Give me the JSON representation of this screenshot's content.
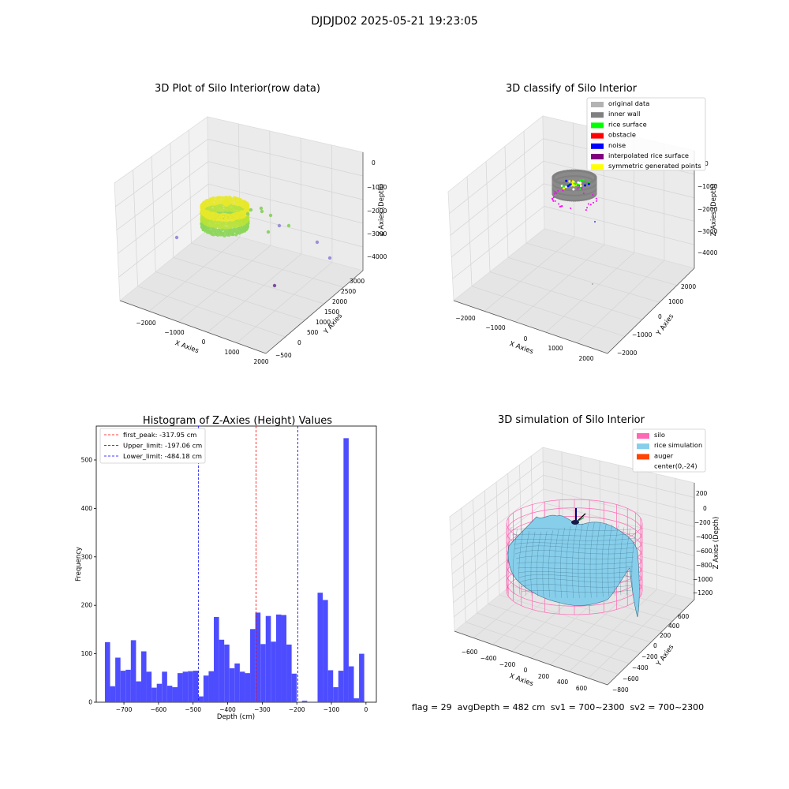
{
  "suptitle": "DJDJD02 2025-05-21 19:23:05",
  "footer": "flag = 29  avgDepth = 482 cm  sv1 = 700~2300  sv2 = 700~2300",
  "chart_data": [
    {
      "type": "scatter",
      "title": "3D Plot of Silo Interior(row data)",
      "xlabel": "X Axies",
      "ylabel": "Y Axies",
      "zlabel": "Z Axies (Depth)",
      "xticks": [
        "−2000",
        "−1000",
        "0",
        "1000",
        "2000"
      ],
      "yticks": [
        "−500",
        "0",
        "500",
        "1000",
        "1500",
        "2000",
        "2500",
        "3000"
      ],
      "zticks": [
        "0",
        "−1000",
        "−2000",
        "−3000",
        "−4000"
      ],
      "colors": {
        "ring_top": "#e8e82a",
        "ring_mid": "#b8e23a",
        "ring_low": "#8cd65a",
        "outlier_a": "#8fd16a",
        "outlier_b": "#9c8fd8",
        "outlier_c": "#7a4f9e"
      }
    },
    {
      "type": "scatter",
      "title": "3D classify of Silo Interior",
      "xlabel": "X Axies",
      "ylabel": "Y Axies",
      "zlabel": "Z Axies (Depth)",
      "xticks": [
        "−2000",
        "−1000",
        "0",
        "1000",
        "2000"
      ],
      "yticks": [
        "−2000",
        "−1000",
        "0",
        "1000",
        "2000"
      ],
      "zticks": [
        "0",
        "−1000",
        "−2000",
        "−3000",
        "−4000"
      ],
      "legend_position": "top-right",
      "legend": [
        {
          "label": "original data",
          "color": "#b3b3b3"
        },
        {
          "label": "inner wall",
          "color": "#808080"
        },
        {
          "label": "rice surface",
          "color": "#00ff00"
        },
        {
          "label": "obstacle",
          "color": "#ff0000"
        },
        {
          "label": "noise",
          "color": "#0000ff"
        },
        {
          "label": "interpolated rice surface",
          "color": "#800080"
        },
        {
          "label": "symmetric generated points",
          "color": "#ffff00"
        }
      ]
    },
    {
      "type": "bar",
      "title": "Histogram of Z-Axies (Height) Values",
      "xlabel": "Depth (cm)",
      "ylabel": "Frequency",
      "xlim": [
        -780,
        30
      ],
      "ylim": [
        0,
        570
      ],
      "xticks": [
        -700,
        -600,
        -500,
        -400,
        -300,
        -200,
        -100,
        0
      ],
      "xtick_labels": [
        "−700",
        "−600",
        "−500",
        "−400",
        "−300",
        "−200",
        "−100",
        "0"
      ],
      "yticks": [
        0,
        100,
        200,
        300,
        400,
        500
      ],
      "bar_color": "#4d4dff",
      "bin_edges": [
        -755,
        -740,
        -725,
        -710,
        -695,
        -680,
        -665,
        -650,
        -635,
        -620,
        -605,
        -590,
        -575,
        -560,
        -545,
        -530,
        -515,
        -500,
        -485,
        -470,
        -455,
        -440,
        -425,
        -410,
        -395,
        -380,
        -365,
        -350,
        -335,
        -320,
        -305,
        -290,
        -275,
        -260,
        -245,
        -230,
        -215,
        -200,
        -185,
        -170,
        -155,
        -140,
        -125,
        -110,
        -95,
        -80,
        -65,
        -50,
        -35,
        -20,
        -5
      ],
      "values": [
        124,
        33,
        92,
        65,
        67,
        128,
        43,
        105,
        63,
        30,
        38,
        63,
        34,
        31,
        60,
        63,
        64,
        65,
        12,
        55,
        64,
        176,
        129,
        119,
        70,
        80,
        63,
        60,
        151,
        185,
        120,
        178,
        125,
        181,
        180,
        119,
        59,
        0,
        3,
        1,
        1,
        226,
        211,
        66,
        31,
        65,
        545,
        74,
        8,
        100
      ],
      "lines": [
        {
          "label": "first_peak: -317.95 cm",
          "x": -317.95,
          "color": "#ff0000"
        },
        {
          "label": "Upper_limit: -197.06 cm",
          "x": -197.06,
          "color": "#0000ff"
        },
        {
          "label": "Lower_limit: -484.18 cm",
          "x": -484.18,
          "color": "#0000ff"
        }
      ],
      "legend_position": "top-left"
    },
    {
      "type": "surface",
      "title": "3D simulation of Silo Interior",
      "xlabel": "X Axies",
      "ylabel": "Y Axies",
      "zlabel": "Z Axies (Depth)",
      "xticks": [
        "−600",
        "−400",
        "−200",
        "0",
        "200",
        "400",
        "600"
      ],
      "yticks": [
        "−800",
        "−600",
        "−400",
        "−200",
        "0",
        "200",
        "400",
        "600"
      ],
      "zticks": [
        "200",
        "0",
        "−200",
        "−400",
        "−600",
        "−800",
        "−1000",
        "−1200"
      ],
      "legend_position": "top-right",
      "legend": [
        {
          "label": "silo",
          "color": "#ff69b4"
        },
        {
          "label": "rice simulation",
          "color": "#87ceeb"
        },
        {
          "label": "auger",
          "color": "#ff4500"
        },
        {
          "label": "center(0,-24)",
          "color": "#ffffff"
        }
      ]
    }
  ]
}
